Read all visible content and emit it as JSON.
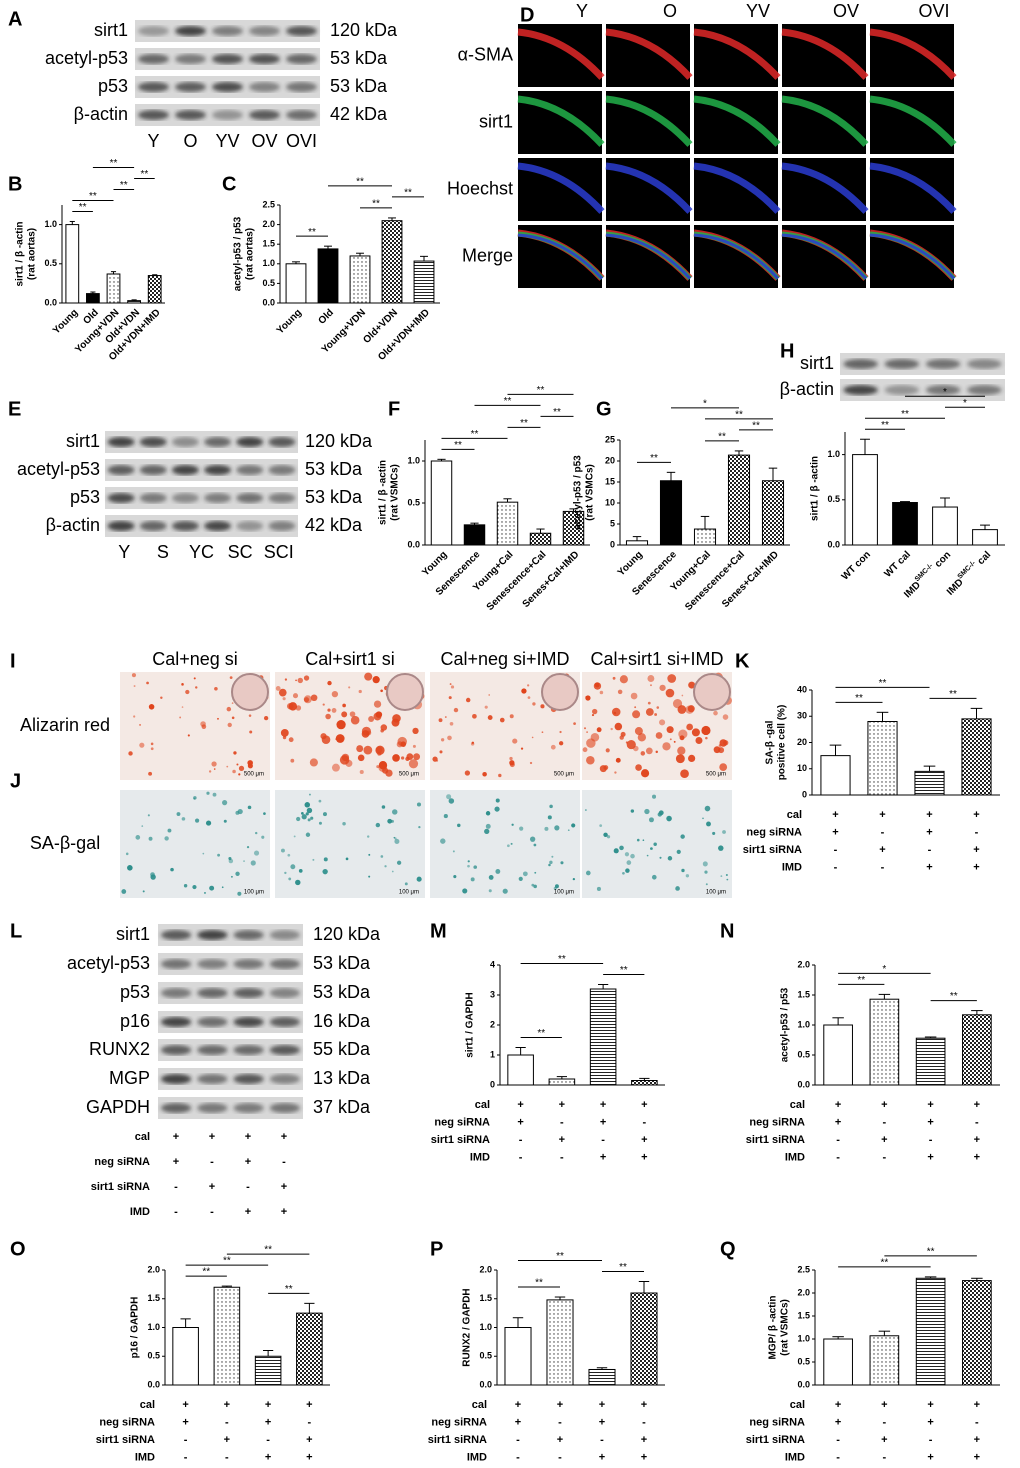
{
  "blots": [
    {
      "panel": "A",
      "rows": [
        {
          "label": "sirt1",
          "kda": "120 kDa"
        },
        {
          "label": "acetyl-p53",
          "kda": "53 kDa"
        },
        {
          "label": "p53",
          "kda": "53 kDa"
        },
        {
          "label": "β-actin",
          "kda": "42 kDa"
        }
      ],
      "lanes": [
        "Y",
        "O",
        "YV",
        "OV",
        "OVI"
      ]
    },
    {
      "panel": "E",
      "rows": [
        {
          "label": "sirt1",
          "kda": "120 kDa"
        },
        {
          "label": "acetyl-p53",
          "kda": "53 kDa"
        },
        {
          "label": "p53",
          "kda": "53 kDa"
        },
        {
          "label": "β-actin",
          "kda": "42 kDa"
        }
      ],
      "lanes": [
        "Y",
        "S",
        "YC",
        "SC",
        "SCI"
      ]
    },
    {
      "panel": "H",
      "rows": [
        {
          "label": "sirt1"
        },
        {
          "label": "β-actin"
        }
      ]
    },
    {
      "panel": "L",
      "rows": [
        {
          "label": "sirt1",
          "kda": "120 kDa"
        },
        {
          "label": "acetyl-p53",
          "kda": "53 kDa"
        },
        {
          "label": "p53",
          "kda": "53 kDa"
        },
        {
          "label": "p16",
          "kda": "16 kDa"
        },
        {
          "label": "RUNX2",
          "kda": "55 kDa"
        },
        {
          "label": "MGP",
          "kda": "13 kDa"
        },
        {
          "label": "GAPDH",
          "kda": "37 kDa"
        }
      ]
    }
  ],
  "micrographs": {
    "panel": "D",
    "columns": [
      "Y",
      "O",
      "YV",
      "OV",
      "OVI"
    ],
    "rows": [
      {
        "label": "α-SMA",
        "color": "#e02828"
      },
      {
        "label": "sirt1",
        "color": "#22b04a"
      },
      {
        "label": "Hoechst",
        "color": "#2a3cd0"
      },
      {
        "label": "Merge",
        "color": "#000000"
      }
    ]
  },
  "staining": {
    "panels": [
      "I",
      "J"
    ],
    "columns": [
      "Cal+neg si",
      "Cal+sirt1 si",
      "Cal+neg si+IMD",
      "Cal+sirt1 si+IMD"
    ],
    "rows": [
      {
        "label": "Alizarin red",
        "scale": "500 μm"
      },
      {
        "label": "SA-β-gal",
        "scale": "100 μm"
      }
    ]
  },
  "conditions": [
    {
      "label": "cal",
      "marks": [
        "+",
        "+",
        "+",
        "+"
      ]
    },
    {
      "label": "neg siRNA",
      "marks": [
        "+",
        "-",
        "+",
        "-"
      ]
    },
    {
      "label": "sirt1 siRNA",
      "marks": [
        "-",
        "+",
        "-",
        "+"
      ]
    },
    {
      "label": "IMD",
      "marks": [
        "-",
        "-",
        "+",
        "+"
      ]
    }
  ],
  "chart_data": [
    {
      "type": "bar",
      "panel": "B",
      "ylabel": [
        "sirt1 / β -actin",
        "(rat aortas)"
      ],
      "categories": [
        "Young",
        "Old",
        "Young+VDN",
        "Old+VDN",
        "Old+VDN+IMD"
      ],
      "values": [
        1.0,
        0.12,
        0.37,
        0.03,
        0.35
      ],
      "errors": [
        0.04,
        0.02,
        0.03,
        0.01,
        0.01
      ],
      "fills": [
        "white",
        "black",
        "dots",
        "hlines",
        "check"
      ],
      "ylim": [
        0,
        1.25
      ],
      "yticks": [
        {
          "value": 0,
          "label": "0.0"
        },
        {
          "value": 0.5,
          "label": "0.5"
        },
        {
          "value": 1,
          "label": "1.0"
        }
      ],
      "annotations": [
        {
          "from": 0,
          "to": 1,
          "label": "**"
        },
        {
          "from": 0,
          "to": 2,
          "label": "**"
        },
        {
          "from": 2,
          "to": 3,
          "label": "**"
        },
        {
          "from": 3,
          "to": 4,
          "label": "**"
        },
        {
          "from": 1,
          "to": 3,
          "label": "**"
        }
      ]
    },
    {
      "type": "bar",
      "panel": "C",
      "ylabel": [
        "acetyl-p53 / p53",
        "(rat aortas)"
      ],
      "categories": [
        "Young",
        "Old",
        "Young+VDN",
        "Old+VDN",
        "Old+VDN+IMD"
      ],
      "values": [
        1.0,
        1.38,
        1.2,
        2.1,
        1.07
      ],
      "errors": [
        0.05,
        0.07,
        0.07,
        0.07,
        0.12
      ],
      "fills": [
        "white",
        "black",
        "dots",
        "check",
        "hlines"
      ],
      "ylim": [
        0,
        2.5
      ],
      "yticks": [
        {
          "value": 0,
          "label": "0.0"
        },
        {
          "value": 0.5,
          "label": "0.5"
        },
        {
          "value": 1,
          "label": "1.0"
        },
        {
          "value": 1.5,
          "label": "1.5"
        },
        {
          "value": 2,
          "label": "2.0"
        },
        {
          "value": 2.5,
          "label": "2.5"
        }
      ],
      "annotations": [
        {
          "from": 0,
          "to": 1,
          "label": "**"
        },
        {
          "from": 2,
          "to": 3,
          "label": "**"
        },
        {
          "from": 3,
          "to": 4,
          "label": "**"
        },
        {
          "from": 1,
          "to": 3,
          "label": "**"
        }
      ]
    },
    {
      "type": "bar",
      "panel": "F",
      "ylabel": [
        "sirt1 / β -actin",
        "(rat VSMCs)"
      ],
      "categories": [
        "Young",
        "Senescence",
        "Young+Cal",
        "Senescence+Cal",
        "Senes+Cal+IMD"
      ],
      "values": [
        1.0,
        0.24,
        0.51,
        0.14,
        0.4
      ],
      "errors": [
        0.02,
        0.02,
        0.04,
        0.05,
        0.03
      ],
      "fills": [
        "white",
        "black",
        "dots",
        "check",
        "check"
      ],
      "ylim": [
        0,
        1.25
      ],
      "yticks": [
        {
          "value": 0,
          "label": "0.0"
        },
        {
          "value": 0.5,
          "label": "0.5"
        },
        {
          "value": 1,
          "label": "1.0"
        }
      ],
      "annotations": [
        {
          "from": 0,
          "to": 1,
          "label": "**"
        },
        {
          "from": 0,
          "to": 2,
          "label": "**"
        },
        {
          "from": 2,
          "to": 3,
          "label": "**"
        },
        {
          "from": 3,
          "to": 4,
          "label": "**"
        },
        {
          "from": 1,
          "to": 3,
          "label": "**"
        },
        {
          "from": 2,
          "to": 4,
          "label": "**"
        }
      ]
    },
    {
      "type": "bar",
      "panel": "G",
      "ylabel": [
        "acetyl-p53 / p53",
        "(rat VSMCs)"
      ],
      "categories": [
        "Young",
        "Senescence",
        "Young+Cal",
        "Senescence+Cal",
        "Senes+Cal+IMD"
      ],
      "values": [
        1,
        15.3,
        3.8,
        21.4,
        15.3
      ],
      "errors": [
        1,
        2,
        3,
        1,
        3
      ],
      "fills": [
        "white",
        "black",
        "dots",
        "check",
        "check"
      ],
      "ylim": [
        0,
        25
      ],
      "yticks": [
        0,
        5,
        10,
        15,
        20,
        25
      ],
      "annotations": [
        {
          "from": 0,
          "to": 1,
          "label": "**"
        },
        {
          "from": 2,
          "to": 3,
          "label": "**"
        },
        {
          "from": 3,
          "to": 4,
          "label": "**"
        },
        {
          "from": 2,
          "to": 4,
          "label": "**"
        },
        {
          "from": 1,
          "to": 3,
          "label": "*"
        }
      ]
    },
    {
      "type": "bar",
      "panel": "H",
      "ylabel": [
        "sirt1 / β -actin"
      ],
      "categories": [
        "WT con",
        "WT cal",
        [
          "IMD",
          "SMC-/-",
          " con"
        ],
        [
          "IMD",
          "SMC-/-",
          " cal"
        ]
      ],
      "values": [
        1.0,
        0.47,
        0.42,
        0.17
      ],
      "errors": [
        0.17,
        0.01,
        0.1,
        0.05
      ],
      "fills": [
        "white",
        "black",
        "white",
        "white"
      ],
      "ylim": [
        0,
        1.25
      ],
      "yticks": [
        {
          "value": 0,
          "label": "0.0"
        },
        {
          "value": 0.5,
          "label": "0.5"
        },
        {
          "value": 1,
          "label": "1.0"
        }
      ],
      "annotations": [
        {
          "from": 0,
          "to": 1,
          "label": "**"
        },
        {
          "from": 0,
          "to": 2,
          "label": "**"
        },
        {
          "from": 2,
          "to": 3,
          "label": "*"
        },
        {
          "from": 1,
          "to": 3,
          "label": "*"
        }
      ]
    },
    {
      "type": "bar",
      "panel": "K",
      "ylabel": [
        "SA-β -gal",
        "positive cell (%)"
      ],
      "values": [
        15,
        28,
        9,
        29
      ],
      "errors": [
        4,
        3.5,
        2,
        4
      ],
      "fills": [
        "white",
        "dots",
        "hlines",
        "check"
      ],
      "ylim": [
        0,
        40
      ],
      "yticks": [
        0,
        10,
        20,
        30,
        40
      ],
      "annotations": [
        {
          "from": 0,
          "to": 1,
          "label": "**"
        },
        {
          "from": 2,
          "to": 3,
          "label": "**"
        },
        {
          "from": 0,
          "to": 2,
          "label": "**"
        }
      ]
    },
    {
      "type": "bar",
      "panel": "M",
      "ylabel": [
        "sirt1 / GAPDH"
      ],
      "values": [
        1.0,
        0.2,
        3.2,
        0.15
      ],
      "errors": [
        0.25,
        0.08,
        0.15,
        0.07
      ],
      "fills": [
        "white",
        "dots",
        "hlines",
        "check"
      ],
      "ylim": [
        0,
        4
      ],
      "yticks": [
        0,
        1,
        2,
        3,
        4
      ],
      "annotations": [
        {
          "from": 0,
          "to": 1,
          "label": "**"
        },
        {
          "from": 2,
          "to": 3,
          "label": "**"
        },
        {
          "from": 0,
          "to": 2,
          "label": "**"
        }
      ]
    },
    {
      "type": "bar",
      "panel": "N",
      "ylabel": [
        "acetyl-p53 / p53"
      ],
      "values": [
        1.0,
        1.43,
        0.78,
        1.17
      ],
      "errors": [
        0.12,
        0.08,
        0.02,
        0.07
      ],
      "fills": [
        "white",
        "dots",
        "hlines",
        "check"
      ],
      "ylim": [
        0,
        2
      ],
      "yticks": [
        {
          "value": 0,
          "label": "0.0"
        },
        {
          "value": 0.5,
          "label": "0.5"
        },
        {
          "value": 1,
          "label": "1.0"
        },
        {
          "value": 1.5,
          "label": "1.5"
        },
        {
          "value": 2,
          "label": "2.0"
        }
      ],
      "annotations": [
        {
          "from": 0,
          "to": 1,
          "label": "**"
        },
        {
          "from": 2,
          "to": 3,
          "label": "**"
        },
        {
          "from": 0,
          "to": 2,
          "label": "*"
        }
      ]
    },
    {
      "type": "bar",
      "panel": "O",
      "ylabel": [
        "p16 / GAPDH"
      ],
      "values": [
        1.0,
        1.7,
        0.5,
        1.25
      ],
      "errors": [
        0.15,
        0.02,
        0.1,
        0.17
      ],
      "fills": [
        "white",
        "dots",
        "hlines",
        "check"
      ],
      "ylim": [
        0,
        2
      ],
      "yticks": [
        {
          "value": 0,
          "label": "0.0"
        },
        {
          "value": 0.5,
          "label": "0.5"
        },
        {
          "value": 1,
          "label": "1.0"
        },
        {
          "value": 1.5,
          "label": "1.5"
        },
        {
          "value": 2,
          "label": "2.0"
        }
      ],
      "annotations": [
        {
          "from": 0,
          "to": 1,
          "label": "**"
        },
        {
          "from": 2,
          "to": 3,
          "label": "**"
        },
        {
          "from": 0,
          "to": 2,
          "label": "**"
        },
        {
          "from": 1,
          "to": 3,
          "label": "**"
        }
      ]
    },
    {
      "type": "bar",
      "panel": "P",
      "ylabel": [
        "RUNX2 / GAPDH"
      ],
      "values": [
        1.0,
        1.48,
        0.27,
        1.6
      ],
      "errors": [
        0.17,
        0.05,
        0.03,
        0.2
      ],
      "fills": [
        "white",
        "dots",
        "hlines",
        "check"
      ],
      "ylim": [
        0,
        2
      ],
      "yticks": [
        {
          "value": 0,
          "label": "0.0"
        },
        {
          "value": 0.5,
          "label": "0.5"
        },
        {
          "value": 1,
          "label": "1.0"
        },
        {
          "value": 1.5,
          "label": "1.5"
        },
        {
          "value": 2,
          "label": "2.0"
        }
      ],
      "annotations": [
        {
          "from": 0,
          "to": 1,
          "label": "**"
        },
        {
          "from": 2,
          "to": 3,
          "label": "**"
        },
        {
          "from": 0,
          "to": 2,
          "label": "**"
        }
      ]
    },
    {
      "type": "bar",
      "panel": "Q",
      "ylabel": [
        "MGP/ β -actin",
        "(rat VSMCs)"
      ],
      "values": [
        1.0,
        1.07,
        2.32,
        2.27
      ],
      "errors": [
        0.05,
        0.1,
        0.03,
        0.05
      ],
      "fills": [
        "white",
        "dots",
        "hlines",
        "check"
      ],
      "ylim": [
        0,
        2.5
      ],
      "yticks": [
        {
          "value": 0,
          "label": "0.0"
        },
        {
          "value": 0.5,
          "label": "0.5"
        },
        {
          "value": 1,
          "label": "1.0"
        },
        {
          "value": 1.5,
          "label": "1.5"
        },
        {
          "value": 2,
          "label": "2.0"
        },
        {
          "value": 2.5,
          "label": "2.5"
        }
      ],
      "annotations": [
        {
          "from": 0,
          "to": 2,
          "label": "**"
        },
        {
          "from": 1,
          "to": 3,
          "label": "**"
        }
      ]
    }
  ]
}
